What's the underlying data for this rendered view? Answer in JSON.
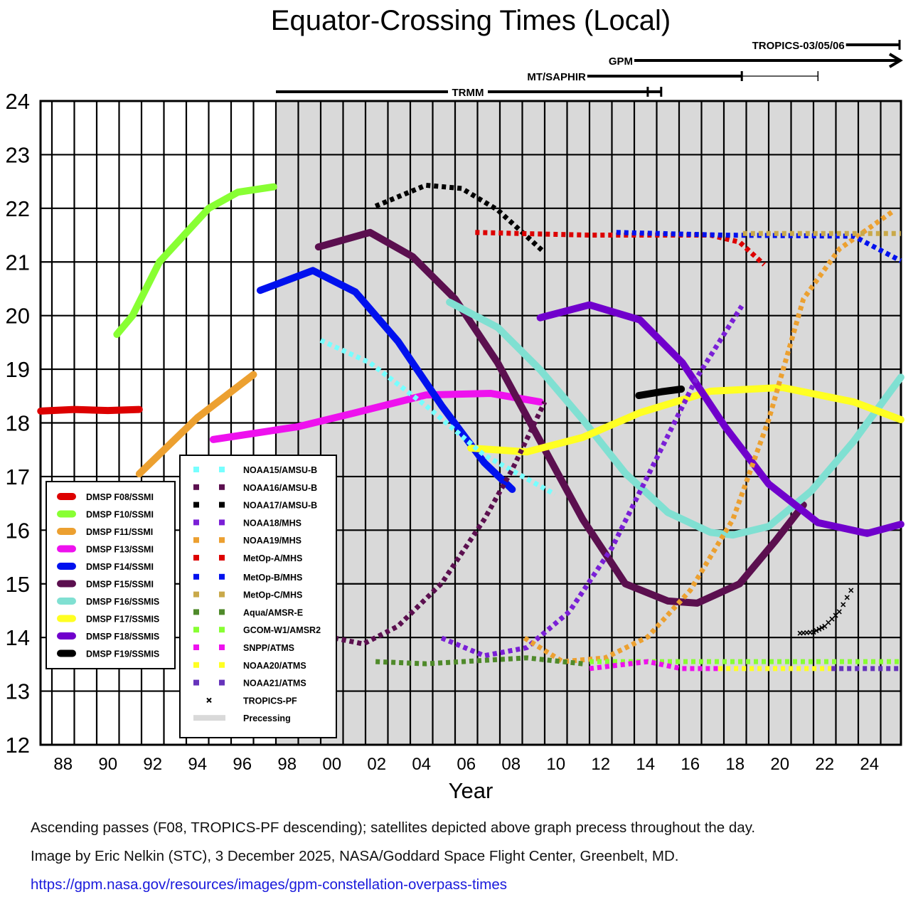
{
  "chart_data": {
    "type": "line",
    "title": "Equator-Crossing Times (Local)",
    "xlabel": "Year",
    "ylabel": "",
    "xlim": [
      1987.5,
      2026.0
    ],
    "ylim": [
      12,
      24
    ],
    "grid": true,
    "x_tick_labels": [
      "88",
      "90",
      "92",
      "94",
      "96",
      "98",
      "00",
      "02",
      "04",
      "06",
      "08",
      "10",
      "12",
      "14",
      "16",
      "18",
      "20",
      "22",
      "24"
    ],
    "x_tick_years": [
      1988,
      1990,
      1992,
      1994,
      1996,
      1998,
      2000,
      2002,
      2004,
      2006,
      2008,
      2010,
      2012,
      2014,
      2016,
      2018,
      2020,
      2022,
      2024
    ],
    "y_ticks": [
      12,
      13,
      14,
      15,
      16,
      17,
      18,
      19,
      20,
      21,
      22,
      23,
      24
    ],
    "processing_shade": {
      "label": "Precessing",
      "from_year": 1998.0,
      "color": "#d9d9d9"
    },
    "series": [
      {
        "name": "DMSP F08/SSMI",
        "color": "#dd0000",
        "style": "solid",
        "points": [
          [
            1987.5,
            18.22
          ],
          [
            1989,
            18.25
          ],
          [
            1990.5,
            18.23
          ],
          [
            1991.9,
            18.25
          ]
        ]
      },
      {
        "name": "DMSP F10/SSMI",
        "color": "#88ff33",
        "style": "solid",
        "points": [
          [
            1990.9,
            19.65
          ],
          [
            1991.6,
            20.0
          ],
          [
            1992.8,
            21.0
          ],
          [
            1995.0,
            22.0
          ],
          [
            1996.3,
            22.3
          ],
          [
            1997.9,
            22.4
          ]
        ]
      },
      {
        "name": "DMSP F11/SSMI",
        "color": "#eca030",
        "style": "solid",
        "points": [
          [
            1991.9,
            17.05
          ],
          [
            1994.5,
            18.1
          ],
          [
            1997.0,
            18.9
          ]
        ]
      },
      {
        "name": "DMSP F13/SSMI",
        "color": "#ee11ee",
        "style": "solid",
        "points": [
          [
            1995.2,
            17.69
          ],
          [
            1999.0,
            17.93
          ],
          [
            2001.55,
            18.19
          ],
          [
            2004.7,
            18.52
          ],
          [
            2007.6,
            18.55
          ],
          [
            2009.8,
            18.39
          ]
        ]
      },
      {
        "name": "DMSP F14/SSMI",
        "color": "#0011ee",
        "style": "solid",
        "points": [
          [
            1997.3,
            20.47
          ],
          [
            1999.65,
            20.84
          ],
          [
            2001.55,
            20.44
          ],
          [
            2003.45,
            19.52
          ],
          [
            2005.4,
            18.32
          ],
          [
            2007.3,
            17.26
          ],
          [
            2008.55,
            16.76
          ]
        ]
      },
      {
        "name": "DMSP F15/SSMI",
        "color": "#5b0f4f",
        "style": "solid",
        "points": [
          [
            1999.9,
            21.28
          ],
          [
            2002.2,
            21.55
          ],
          [
            2004.1,
            21.1
          ],
          [
            2006.0,
            20.31
          ],
          [
            2007.9,
            19.12
          ],
          [
            2009.8,
            17.66
          ],
          [
            2011.7,
            16.2
          ],
          [
            2013.6,
            15.0
          ],
          [
            2015.5,
            14.68
          ],
          [
            2016.8,
            14.64
          ],
          [
            2018.7,
            15.0
          ],
          [
            2020.3,
            15.8
          ],
          [
            2021.55,
            16.47
          ]
        ]
      },
      {
        "name": "DMSP F16/SSMIS",
        "color": "#80e0d2",
        "style": "solid",
        "points": [
          [
            2005.75,
            20.25
          ],
          [
            2007.9,
            19.78
          ],
          [
            2009.8,
            18.99
          ],
          [
            2011.7,
            18.06
          ],
          [
            2013.6,
            17.06
          ],
          [
            2015.5,
            16.33
          ],
          [
            2017.4,
            15.96
          ],
          [
            2018.4,
            15.91
          ],
          [
            2020.0,
            16.07
          ],
          [
            2021.9,
            16.73
          ],
          [
            2023.8,
            17.66
          ],
          [
            2025.9,
            18.85
          ]
        ]
      },
      {
        "name": "DMSP F17/SSMIS",
        "color": "#ffff22",
        "style": "solid",
        "points": [
          [
            2006.7,
            17.53
          ],
          [
            2009.2,
            17.46
          ],
          [
            2011.7,
            17.73
          ],
          [
            2014.25,
            18.19
          ],
          [
            2017.4,
            18.59
          ],
          [
            2020.6,
            18.66
          ],
          [
            2023.8,
            18.39
          ],
          [
            2025.9,
            18.06
          ]
        ]
      },
      {
        "name": "DMSP F18/SSMIS",
        "color": "#7000cc",
        "style": "solid",
        "points": [
          [
            2009.8,
            19.96
          ],
          [
            2012.0,
            20.2
          ],
          [
            2014.25,
            19.92
          ],
          [
            2016.15,
            19.12
          ],
          [
            2018.05,
            17.93
          ],
          [
            2020.0,
            16.86
          ],
          [
            2022.2,
            16.14
          ],
          [
            2024.4,
            15.94
          ],
          [
            2025.9,
            16.11
          ]
        ]
      },
      {
        "name": "DMSP F19/SSMIS",
        "color": "#000000",
        "style": "solid",
        "points": [
          [
            2014.2,
            18.51
          ],
          [
            2015.2,
            18.58
          ],
          [
            2016.1,
            18.63
          ]
        ]
      },
      {
        "name": "NOAA15/AMSU-B",
        "color": "#77ffff",
        "style": "dashed",
        "points": [
          [
            2000.0,
            19.54
          ],
          [
            2002.2,
            19.12
          ],
          [
            2004.7,
            18.32
          ],
          [
            2007.3,
            17.4
          ],
          [
            2010.45,
            16.67
          ]
        ]
      },
      {
        "name": "NOAA16/AMSU-B",
        "color": "#5b0f4f",
        "style": "dashed",
        "points": [
          [
            2000.6,
            13.99
          ],
          [
            2001.9,
            13.88
          ],
          [
            2003.45,
            14.21
          ],
          [
            2005.4,
            15.01
          ],
          [
            2007.3,
            16.2
          ],
          [
            2008.55,
            17.13
          ],
          [
            2010.0,
            18.39
          ]
        ]
      },
      {
        "name": "NOAA17/AMSU-B",
        "color": "#000000",
        "style": "dashed",
        "points": [
          [
            2002.45,
            22.04
          ],
          [
            2004.7,
            22.43
          ],
          [
            2006.3,
            22.37
          ],
          [
            2007.9,
            21.97
          ],
          [
            2009.9,
            21.21
          ]
        ]
      },
      {
        "name": "NOAA18/MHS",
        "color": "#7a1fd6",
        "style": "dashed",
        "points": [
          [
            2005.4,
            13.99
          ],
          [
            2007.3,
            13.66
          ],
          [
            2009.2,
            13.81
          ],
          [
            2011.1,
            14.48
          ],
          [
            2013.0,
            15.67
          ],
          [
            2014.9,
            17.26
          ],
          [
            2016.8,
            18.85
          ],
          [
            2018.8,
            20.18
          ]
        ]
      },
      {
        "name": "NOAA19/MHS",
        "color": "#eca030",
        "style": "dashed",
        "points": [
          [
            2009.1,
            13.99
          ],
          [
            2010.8,
            13.55
          ],
          [
            2012.7,
            13.62
          ],
          [
            2014.6,
            14.01
          ],
          [
            2016.5,
            14.88
          ],
          [
            2018.4,
            16.2
          ],
          [
            2020.0,
            18.06
          ],
          [
            2021.55,
            20.31
          ],
          [
            2023.15,
            21.24
          ],
          [
            2025.5,
            21.93
          ]
        ]
      },
      {
        "name": "MetOp-A/MHS",
        "color": "#dd0000",
        "style": "dashed",
        "points": [
          [
            2006.9,
            21.55
          ],
          [
            2012.0,
            21.5
          ],
          [
            2017.4,
            21.5
          ],
          [
            2018.7,
            21.37
          ],
          [
            2019.8,
            20.95
          ]
        ]
      },
      {
        "name": "MetOp-B/MHS",
        "color": "#0011ee",
        "style": "dashed",
        "points": [
          [
            2013.2,
            21.55
          ],
          [
            2018.0,
            21.5
          ],
          [
            2023.8,
            21.48
          ],
          [
            2025.9,
            21.02
          ]
        ]
      },
      {
        "name": "MetOp-C/MHS",
        "color": "#c9a94a",
        "style": "dashed",
        "points": [
          [
            2018.85,
            21.53
          ],
          [
            2025.9,
            21.53
          ]
        ]
      },
      {
        "name": "Aqua/AMSR-E",
        "color": "#4f8a2a",
        "style": "dashed",
        "points": [
          [
            2002.45,
            13.55
          ],
          [
            2004.7,
            13.51
          ],
          [
            2009.2,
            13.62
          ],
          [
            2011.7,
            13.51
          ]
        ]
      },
      {
        "name": "GCOM-W1/AMSR2",
        "color": "#88ff33",
        "style": "dashed",
        "points": [
          [
            2012.0,
            13.55
          ],
          [
            2025.9,
            13.55
          ]
        ]
      },
      {
        "name": "SNPP/ATMS",
        "color": "#ee11ee",
        "style": "dashed",
        "points": [
          [
            2012.0,
            13.42
          ],
          [
            2014.6,
            13.55
          ],
          [
            2016.1,
            13.42
          ],
          [
            2017.75,
            13.42
          ]
        ]
      },
      {
        "name": "NOAA20/ATMS",
        "color": "#ffff22",
        "style": "dashed",
        "points": [
          [
            2017.75,
            13.42
          ],
          [
            2022.8,
            13.42
          ]
        ]
      },
      {
        "name": "NOAA21/ATMS",
        "color": "#6633bb",
        "style": "dashed",
        "points": [
          [
            2022.8,
            13.42
          ],
          [
            2025.9,
            13.42
          ]
        ]
      },
      {
        "name": "TROPICS-PF",
        "color": "#000000",
        "style": "cross",
        "points": [
          [
            2021.4,
            14.08
          ],
          [
            2022.0,
            14.1
          ],
          [
            2022.5,
            14.21
          ],
          [
            2023.15,
            14.48
          ],
          [
            2023.85,
            15.01
          ]
        ]
      }
    ],
    "mission_bars": [
      {
        "label": "TRMM",
        "from_year": 1998.0,
        "to_year": 2015.2,
        "tick_year": 2014.6,
        "end": "bar"
      },
      {
        "label": "MT/SAPHIR",
        "from_year": 2011.9,
        "to_year": 2018.8,
        "thin_to_year": 2022.2,
        "end": "bar"
      },
      {
        "label": "GPM",
        "from_year": 2014.0,
        "to_year": 2026.0,
        "end": "arrow"
      },
      {
        "label": "TROPICS-03/05/06",
        "from_year": 2023.45,
        "to_year": 2025.9,
        "end": "bar"
      }
    ]
  },
  "footer": {
    "line1": "Ascending passes (F08, TROPICS-PF descending); satellites depicted above graph precess throughout the day.",
    "line2": "Image by Eric Nelkin (STC), 3 December 2025, NASA/Goddard Space Flight Center, Greenbelt, MD.",
    "link": "https://gpm.nasa.gov/resources/images/gpm-constellation-overpass-times"
  }
}
